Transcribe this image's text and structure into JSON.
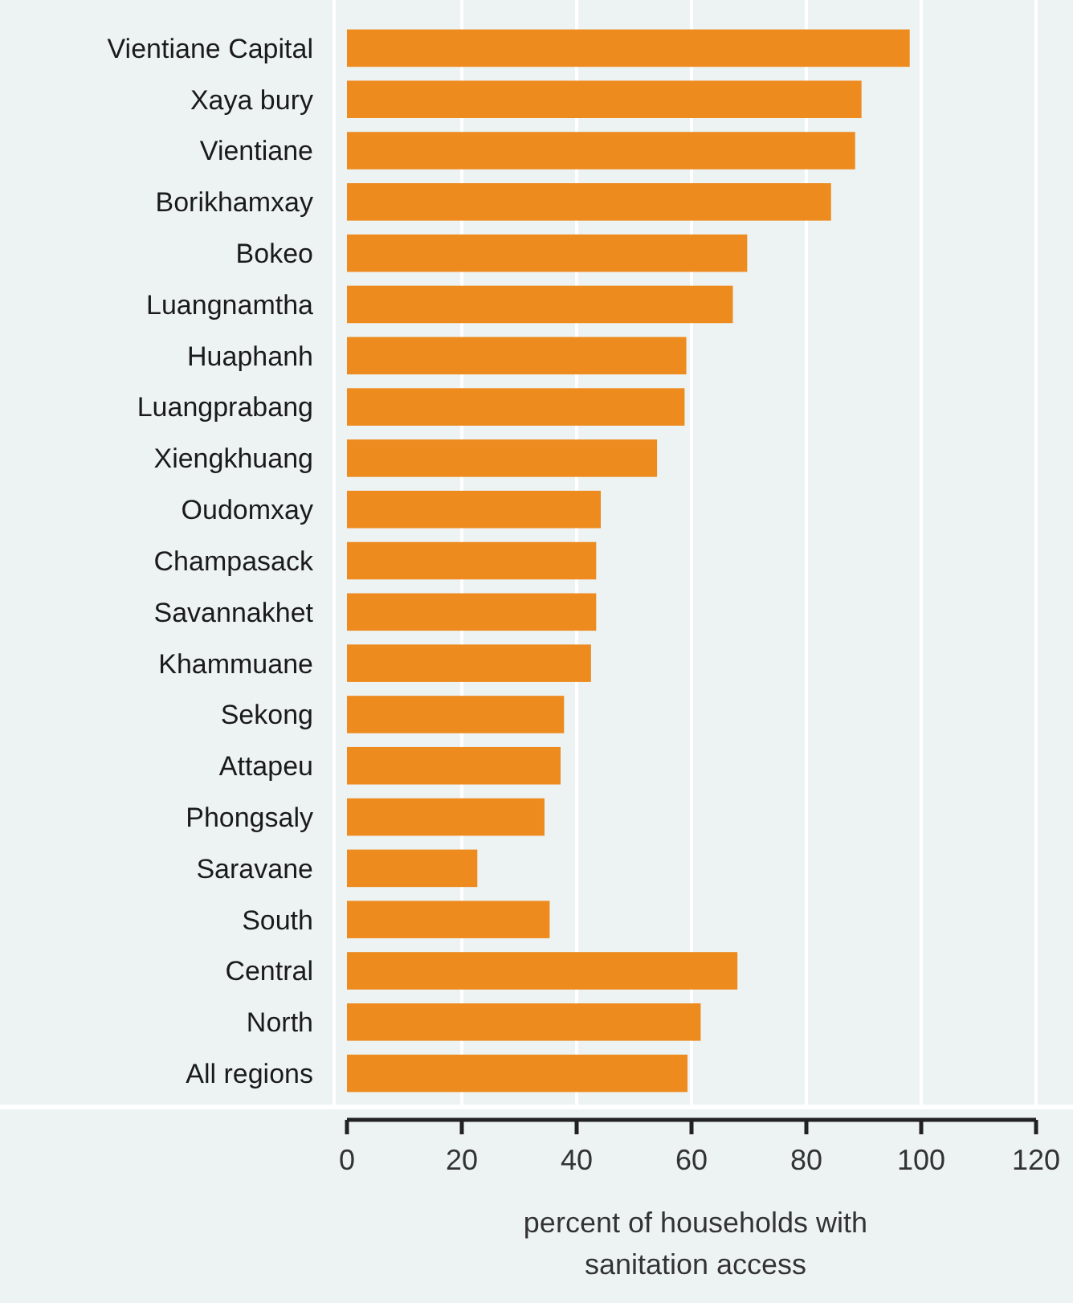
{
  "chart_data": {
    "type": "bar",
    "orientation": "horizontal",
    "xlabel": "percent of households with sanitation access",
    "categories": [
      "Vientiane Capital",
      "Xaya bury",
      "Vientiane",
      "Borikhamxay",
      "Bokeo",
      "Luangnamtha",
      "Huaphanh",
      "Luangprabang",
      "Xiengkhuang",
      "Oudomxay",
      "Champasack",
      "Savannakhet",
      "Khammuane",
      "Sekong",
      "Attapeu",
      "Phongsaly",
      "Saravane",
      "South",
      "Central",
      "North",
      "All regions"
    ],
    "values": [
      98.0,
      89.6,
      88.5,
      84.3,
      69.7,
      67.2,
      59.1,
      58.8,
      54.0,
      44.2,
      43.4,
      43.4,
      42.5,
      37.8,
      37.2,
      34.4,
      22.7,
      35.3,
      68.0,
      61.6,
      59.3
    ],
    "color": "#ed8b1f",
    "xlim": [
      0,
      120
    ],
    "xticks": [
      0,
      20,
      40,
      60,
      80,
      100,
      120
    ],
    "grid": "x"
  }
}
